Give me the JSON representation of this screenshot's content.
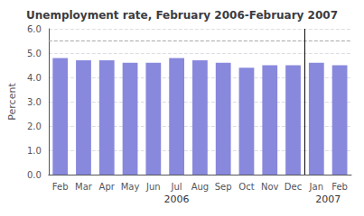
{
  "chart_data": {
    "type": "bar",
    "title": "Unemployment rate, February 2006-February 2007",
    "ylabel": "Percent",
    "categories": [
      "Feb",
      "Mar",
      "Apr",
      "May",
      "Jun",
      "Jul",
      "Aug",
      "Sep",
      "Oct",
      "Nov",
      "Dec",
      "Jan",
      "Feb"
    ],
    "values": [
      4.8,
      4.7,
      4.7,
      4.6,
      4.6,
      4.8,
      4.7,
      4.6,
      4.4,
      4.5,
      4.5,
      4.6,
      4.5
    ],
    "color": "#8888dd",
    "ylim": [
      0.0,
      6.0
    ],
    "yticks": [
      {
        "value": 0,
        "label": "0.0"
      },
      {
        "value": 1,
        "label": "1.0"
      },
      {
        "value": 2,
        "label": "2.0"
      },
      {
        "value": 3,
        "label": "3.0"
      },
      {
        "value": 4,
        "label": "4.0"
      },
      {
        "value": 5,
        "label": "5.0"
      },
      {
        "value": 6,
        "label": "6.0"
      }
    ],
    "hline": 5.5,
    "year_groups": [
      {
        "label": "2006",
        "count": 11
      },
      {
        "label": "2007",
        "count": 2
      }
    ],
    "grid": true
  }
}
